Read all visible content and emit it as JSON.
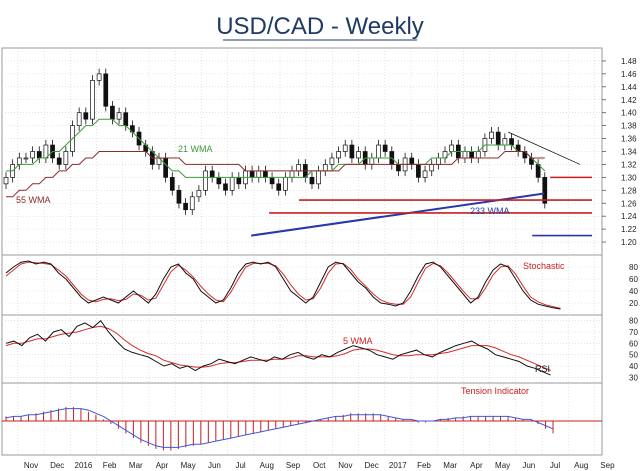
{
  "chart_data": {
    "type": "candlestick",
    "title": "USD/CAD - Weekly",
    "colors": {
      "title": "#1f3a63",
      "wma21": "#3c9a3c",
      "wma55": "#8b2a2a",
      "wma233": "#2838a8",
      "support": "#c81e1e",
      "stoch_k": "#111111",
      "stoch_d": "#d52b2b",
      "rsi": "#111111",
      "rsi_wma": "#d52b2b",
      "tension_bars": "#c81e1e",
      "tension_line": "#3a5bd9",
      "grid": "#cfcfcf"
    },
    "x_axis": {
      "months": [
        "Nov",
        "Dec",
        "2016",
        "Feb",
        "Mar",
        "Apr",
        "May",
        "Jun",
        "Jul",
        "Aug",
        "Sep",
        "Oct",
        "Nov",
        "Dec",
        "2017",
        "Feb",
        "Mar",
        "Apr",
        "May",
        "Jun",
        "Jul",
        "Aug",
        "Sep"
      ]
    },
    "price_panel": {
      "ylim": [
        1.18,
        1.5
      ],
      "ticks": [
        1.48,
        1.46,
        1.44,
        1.42,
        1.4,
        1.38,
        1.36,
        1.34,
        1.32,
        1.3,
        1.28,
        1.26,
        1.24,
        1.22,
        1.2
      ],
      "close": [
        1.3,
        1.32,
        1.33,
        1.33,
        1.34,
        1.33,
        1.35,
        1.33,
        1.32,
        1.34,
        1.38,
        1.4,
        1.39,
        1.45,
        1.46,
        1.41,
        1.39,
        1.4,
        1.38,
        1.37,
        1.35,
        1.34,
        1.32,
        1.33,
        1.3,
        1.28,
        1.26,
        1.25,
        1.27,
        1.28,
        1.31,
        1.3,
        1.29,
        1.28,
        1.3,
        1.29,
        1.31,
        1.3,
        1.31,
        1.3,
        1.29,
        1.28,
        1.3,
        1.31,
        1.32,
        1.3,
        1.29,
        1.31,
        1.32,
        1.33,
        1.34,
        1.35,
        1.33,
        1.34,
        1.32,
        1.33,
        1.35,
        1.34,
        1.32,
        1.31,
        1.33,
        1.32,
        1.3,
        1.31,
        1.32,
        1.33,
        1.34,
        1.35,
        1.33,
        1.34,
        1.33,
        1.34,
        1.36,
        1.37,
        1.35,
        1.36,
        1.35,
        1.34,
        1.33,
        1.32,
        1.3,
        1.26
      ],
      "wma21": [
        1.31,
        1.31,
        1.32,
        1.32,
        1.32,
        1.33,
        1.33,
        1.34,
        1.34,
        1.35,
        1.36,
        1.37,
        1.38,
        1.38,
        1.39,
        1.39,
        1.39,
        1.38,
        1.38,
        1.37,
        1.36,
        1.35,
        1.34,
        1.33,
        1.32,
        1.31,
        1.31,
        1.3,
        1.3,
        1.3,
        1.3,
        1.3,
        1.3,
        1.3,
        1.3,
        1.3,
        1.3,
        1.3,
        1.3,
        1.3,
        1.3,
        1.3,
        1.3,
        1.3,
        1.3,
        1.3,
        1.31,
        1.31,
        1.31,
        1.31,
        1.32,
        1.32,
        1.32,
        1.32,
        1.33,
        1.33,
        1.33,
        1.33,
        1.33,
        1.32,
        1.32,
        1.32,
        1.32,
        1.32,
        1.33,
        1.33,
        1.33,
        1.34,
        1.34,
        1.34,
        1.34,
        1.34,
        1.35,
        1.35,
        1.35,
        1.35,
        1.35,
        1.34,
        1.34,
        1.33,
        1.32,
        1.31
      ],
      "wma55": [
        1.27,
        1.27,
        1.28,
        1.28,
        1.29,
        1.29,
        1.3,
        1.3,
        1.31,
        1.31,
        1.32,
        1.32,
        1.33,
        1.33,
        1.34,
        1.34,
        1.34,
        1.34,
        1.34,
        1.34,
        1.34,
        1.34,
        1.33,
        1.33,
        1.33,
        1.33,
        1.33,
        1.32,
        1.32,
        1.32,
        1.32,
        1.32,
        1.32,
        1.32,
        1.32,
        1.32,
        1.31,
        1.31,
        1.31,
        1.31,
        1.31,
        1.31,
        1.31,
        1.31,
        1.31,
        1.31,
        1.31,
        1.31,
        1.31,
        1.31,
        1.31,
        1.32,
        1.32,
        1.32,
        1.32,
        1.32,
        1.32,
        1.32,
        1.32,
        1.32,
        1.32,
        1.32,
        1.32,
        1.32,
        1.32,
        1.32,
        1.32,
        1.32,
        1.33,
        1.33,
        1.33,
        1.33,
        1.33,
        1.33,
        1.33,
        1.34,
        1.34,
        1.34,
        1.34,
        1.33,
        1.33,
        1.33
      ],
      "wma233_line": {
        "x_index": [
          41,
          90
        ],
        "y": [
          1.21,
          1.275
        ]
      },
      "support_lines": [
        {
          "x_index": [
            49,
            98
          ],
          "y": 1.265
        },
        {
          "x_index": [
            44,
            98
          ],
          "y": 1.245
        },
        {
          "x_index": [
            91,
            98
          ],
          "y": 1.3
        }
      ],
      "downtrend_line": {
        "x_index": [
          84,
          96
        ],
        "y": [
          1.37,
          1.32
        ]
      },
      "blue_marker_line": {
        "x_index": [
          88,
          98
        ],
        "y": 1.21
      }
    },
    "annotations": {
      "wma21": "21 WMA",
      "wma55": "55 WMA",
      "wma233": "233 WMA",
      "stochastic": "Stochastic",
      "wma5": "5 WMA",
      "rsi": "RSI",
      "tension": "Tension Indicator"
    },
    "stochastic_panel": {
      "ylim": [
        0,
        100
      ],
      "ticks": [
        80,
        60,
        40,
        20
      ],
      "k": [
        70,
        80,
        88,
        90,
        85,
        88,
        85,
        70,
        60,
        45,
        30,
        20,
        25,
        30,
        25,
        20,
        30,
        40,
        30,
        20,
        35,
        60,
        80,
        85,
        70,
        60,
        40,
        30,
        20,
        25,
        45,
        70,
        85,
        88,
        85,
        88,
        80,
        60,
        40,
        30,
        20,
        30,
        55,
        80,
        88,
        85,
        70,
        55,
        45,
        30,
        20,
        18,
        15,
        20,
        40,
        65,
        85,
        88,
        80,
        65,
        50,
        35,
        20,
        30,
        55,
        75,
        85,
        80,
        60,
        40,
        25,
        18,
        15,
        12,
        10
      ],
      "d": [
        65,
        75,
        85,
        88,
        87,
        86,
        84,
        75,
        65,
        50,
        35,
        25,
        22,
        26,
        27,
        24,
        26,
        35,
        33,
        25,
        28,
        50,
        72,
        83,
        75,
        63,
        48,
        35,
        25,
        22,
        38,
        60,
        80,
        86,
        86,
        86,
        82,
        68,
        50,
        35,
        25,
        27,
        45,
        70,
        85,
        86,
        76,
        60,
        48,
        35,
        25,
        20,
        18,
        18,
        30,
        55,
        78,
        86,
        82,
        70,
        55,
        40,
        27,
        27,
        45,
        67,
        80,
        82,
        68,
        48,
        30,
        22,
        17,
        14,
        11
      ]
    },
    "rsi_panel": {
      "ylim": [
        25,
        85
      ],
      "ticks": [
        80,
        70,
        60,
        50,
        40,
        30
      ],
      "rsi": [
        60,
        62,
        58,
        65,
        68,
        62,
        70,
        72,
        66,
        75,
        78,
        74,
        80,
        70,
        62,
        55,
        52,
        50,
        48,
        44,
        40,
        42,
        38,
        40,
        36,
        40,
        42,
        46,
        44,
        42,
        45,
        48,
        46,
        44,
        48,
        46,
        50,
        52,
        48,
        46,
        50,
        48,
        52,
        55,
        58,
        56,
        54,
        50,
        48,
        46,
        50,
        52,
        54,
        50,
        48,
        52,
        55,
        58,
        60,
        62,
        58,
        55,
        50,
        48,
        46,
        44,
        40,
        38,
        35,
        32
      ],
      "wma5": [
        58,
        60,
        60,
        62,
        64,
        64,
        66,
        68,
        69,
        70,
        72,
        74,
        75,
        73,
        69,
        63,
        58,
        54,
        51,
        49,
        45,
        43,
        41,
        40,
        39,
        39,
        40,
        42,
        43,
        43,
        44,
        45,
        45,
        45,
        46,
        46,
        47,
        49,
        49,
        48,
        48,
        48,
        49,
        51,
        54,
        55,
        55,
        54,
        52,
        50,
        49,
        49,
        50,
        50,
        50,
        51,
        52,
        54,
        56,
        58,
        58,
        58,
        56,
        53,
        50,
        48,
        45,
        42,
        39,
        36
      ]
    },
    "tension_panel": {
      "zero_line": 0,
      "bars": [
        3,
        3,
        3,
        4,
        5,
        6,
        7,
        8,
        9,
        9,
        8,
        6,
        4,
        1,
        -2,
        -5,
        -8,
        -11,
        -14,
        -16,
        -18,
        -19,
        -19,
        -18,
        -17,
        -16,
        -15,
        -14,
        -13,
        -12,
        -11,
        -10,
        -9,
        -8,
        -7,
        -6,
        -5,
        -4,
        -3,
        -2,
        -1,
        0,
        1,
        2,
        3,
        4,
        5,
        5,
        5,
        5,
        4,
        3,
        2,
        1,
        0,
        -1,
        -1,
        0,
        1,
        2,
        2,
        3,
        3,
        3,
        3,
        3,
        3,
        3,
        2,
        1,
        0,
        -2,
        -5,
        -8
      ],
      "line": [
        2,
        3,
        3,
        4,
        4,
        5,
        6,
        7,
        8,
        8,
        8,
        7,
        5,
        3,
        0,
        -3,
        -6,
        -9,
        -12,
        -14,
        -16,
        -17,
        -17,
        -17,
        -16,
        -15,
        -15,
        -14,
        -13,
        -12,
        -11,
        -10,
        -9,
        -8,
        -7,
        -6,
        -5,
        -4,
        -3,
        -2,
        -1,
        0,
        1,
        2,
        3,
        3,
        4,
        4,
        4,
        4,
        4,
        3,
        2,
        1,
        1,
        0,
        0,
        0,
        1,
        1,
        2,
        2,
        3,
        3,
        3,
        3,
        3,
        3,
        2,
        1,
        1,
        -1,
        -3,
        -5
      ]
    }
  }
}
